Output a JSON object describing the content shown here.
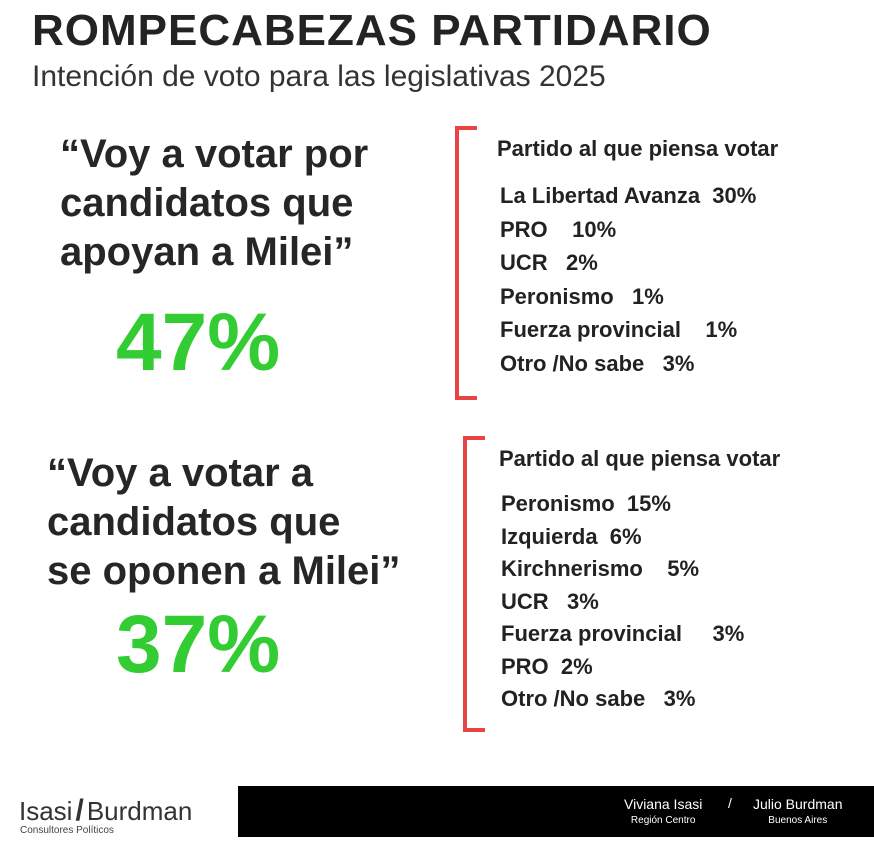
{
  "header": {
    "title": "ROMPECABEZAS PARTIDARIO",
    "subtitle": "Intención de voto para las legislativas 2025"
  },
  "colors": {
    "accent_green": "#33cc33",
    "bracket_red": "#e84444"
  },
  "section_support": {
    "quote_lines": [
      "“Voy a votar por",
      "candidatos que",
      "apoyan a Milei”"
    ],
    "percent": "47%",
    "party_heading": "Partido al que piensa votar",
    "parties": [
      "La Libertad Avanza  30%",
      "PRO    10%",
      "UCR   2%",
      "Peronismo   1%",
      "Fuerza provincial    1%",
      "Otro /No sabe   3%"
    ]
  },
  "section_oppose": {
    "quote_lines": [
      "“Voy a votar a",
      "candidatos que",
      "se oponen a Milei”"
    ],
    "percent": "37%",
    "party_heading": "Partido al que piensa votar",
    "parties": [
      "Peronismo  15%",
      "Izquierda  6%",
      "Kirchnerismo    5%",
      "UCR   3%",
      "Fuerza provincial     3%",
      "PRO  2%",
      "Otro /No sabe   3%"
    ]
  },
  "footer": {
    "logo_left": "Isasi",
    "logo_slash": "/",
    "logo_right": "Burdman",
    "logo_tagline": "Consultores Políticos",
    "separator": "/",
    "authors": [
      {
        "name": "Viviana Isasi",
        "region": "Región Centro"
      },
      {
        "name": "Julio Burdman",
        "region": "Buenos Aires"
      }
    ]
  }
}
